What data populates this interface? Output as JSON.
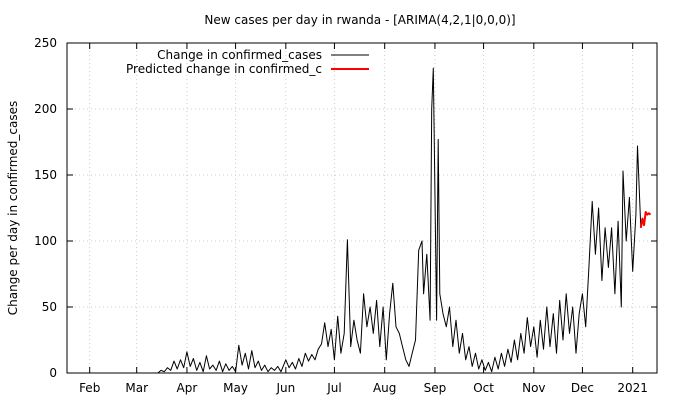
{
  "chart_data": {
    "type": "line",
    "title": "New cases per day in rwanda -  [ARIMA(4,2,1|0,0,0)]",
    "xlabel": "",
    "ylabel": "Change per day in confirmed_cases",
    "ylim": [
      0,
      250
    ],
    "xlim": [
      "2020-01-18",
      "2021-01-16"
    ],
    "yticks": [
      0,
      50,
      100,
      150,
      200,
      250
    ],
    "xticks": [
      {
        "label": "Feb",
        "date": "2020-02-01"
      },
      {
        "label": "Mar",
        "date": "2020-03-01"
      },
      {
        "label": "Apr",
        "date": "2020-04-01"
      },
      {
        "label": "May",
        "date": "2020-05-01"
      },
      {
        "label": "Jun",
        "date": "2020-06-01"
      },
      {
        "label": "Jul",
        "date": "2020-07-01"
      },
      {
        "label": "Aug",
        "date": "2020-08-01"
      },
      {
        "label": "Sep",
        "date": "2020-09-01"
      },
      {
        "label": "Oct",
        "date": "2020-10-01"
      },
      {
        "label": "Nov",
        "date": "2020-11-01"
      },
      {
        "label": "Dec",
        "date": "2020-12-01"
      },
      {
        "label": "2021",
        "date": "2021-01-01"
      }
    ],
    "grid": true,
    "legend_position": "top-left",
    "series": [
      {
        "name": "Change in confirmed_cases",
        "color": "#000000",
        "points": [
          [
            "2020-03-14",
            0
          ],
          [
            "2020-03-16",
            2
          ],
          [
            "2020-03-18",
            1
          ],
          [
            "2020-03-20",
            4
          ],
          [
            "2020-03-22",
            2
          ],
          [
            "2020-03-24",
            9
          ],
          [
            "2020-03-26",
            3
          ],
          [
            "2020-03-28",
            10
          ],
          [
            "2020-03-30",
            4
          ],
          [
            "2020-04-01",
            16
          ],
          [
            "2020-04-03",
            5
          ],
          [
            "2020-04-05",
            11
          ],
          [
            "2020-04-07",
            2
          ],
          [
            "2020-04-09",
            8
          ],
          [
            "2020-04-11",
            1
          ],
          [
            "2020-04-13",
            13
          ],
          [
            "2020-04-15",
            3
          ],
          [
            "2020-04-17",
            6
          ],
          [
            "2020-04-19",
            2
          ],
          [
            "2020-04-21",
            9
          ],
          [
            "2020-04-23",
            1
          ],
          [
            "2020-04-25",
            7
          ],
          [
            "2020-04-27",
            2
          ],
          [
            "2020-04-29",
            5
          ],
          [
            "2020-05-01",
            1
          ],
          [
            "2020-05-03",
            21
          ],
          [
            "2020-05-05",
            6
          ],
          [
            "2020-05-07",
            15
          ],
          [
            "2020-05-09",
            3
          ],
          [
            "2020-05-11",
            17
          ],
          [
            "2020-05-13",
            4
          ],
          [
            "2020-05-15",
            9
          ],
          [
            "2020-05-17",
            2
          ],
          [
            "2020-05-19",
            6
          ],
          [
            "2020-05-21",
            1
          ],
          [
            "2020-05-23",
            4
          ],
          [
            "2020-05-25",
            2
          ],
          [
            "2020-05-27",
            5
          ],
          [
            "2020-05-29",
            1
          ],
          [
            "2020-06-01",
            10
          ],
          [
            "2020-06-03",
            4
          ],
          [
            "2020-06-05",
            8
          ],
          [
            "2020-06-07",
            3
          ],
          [
            "2020-06-09",
            11
          ],
          [
            "2020-06-11",
            5
          ],
          [
            "2020-06-13",
            15
          ],
          [
            "2020-06-15",
            9
          ],
          [
            "2020-06-17",
            14
          ],
          [
            "2020-06-19",
            10
          ],
          [
            "2020-06-21",
            18
          ],
          [
            "2020-06-23",
            22
          ],
          [
            "2020-06-25",
            38
          ],
          [
            "2020-06-27",
            20
          ],
          [
            "2020-06-29",
            33
          ],
          [
            "2020-07-01",
            10
          ],
          [
            "2020-07-03",
            43
          ],
          [
            "2020-07-05",
            15
          ],
          [
            "2020-07-07",
            30
          ],
          [
            "2020-07-09",
            101
          ],
          [
            "2020-07-11",
            20
          ],
          [
            "2020-07-13",
            40
          ],
          [
            "2020-07-15",
            25
          ],
          [
            "2020-07-17",
            15
          ],
          [
            "2020-07-19",
            60
          ],
          [
            "2020-07-21",
            35
          ],
          [
            "2020-07-23",
            50
          ],
          [
            "2020-07-25",
            30
          ],
          [
            "2020-07-27",
            55
          ],
          [
            "2020-07-29",
            20
          ],
          [
            "2020-07-31",
            50
          ],
          [
            "2020-08-02",
            10
          ],
          [
            "2020-08-04",
            45
          ],
          [
            "2020-08-06",
            68
          ],
          [
            "2020-08-08",
            35
          ],
          [
            "2020-08-10",
            30
          ],
          [
            "2020-08-12",
            20
          ],
          [
            "2020-08-14",
            10
          ],
          [
            "2020-08-16",
            5
          ],
          [
            "2020-08-18",
            15
          ],
          [
            "2020-08-20",
            25
          ],
          [
            "2020-08-22",
            93
          ],
          [
            "2020-08-24",
            100
          ],
          [
            "2020-08-25",
            60
          ],
          [
            "2020-08-27",
            90
          ],
          [
            "2020-08-29",
            40
          ],
          [
            "2020-08-30",
            200
          ],
          [
            "2020-08-31",
            231
          ],
          [
            "2020-09-02",
            40
          ],
          [
            "2020-09-03",
            177
          ],
          [
            "2020-09-04",
            60
          ],
          [
            "2020-09-06",
            45
          ],
          [
            "2020-09-08",
            35
          ],
          [
            "2020-09-10",
            50
          ],
          [
            "2020-09-12",
            20
          ],
          [
            "2020-09-14",
            40
          ],
          [
            "2020-09-16",
            15
          ],
          [
            "2020-09-18",
            30
          ],
          [
            "2020-09-20",
            10
          ],
          [
            "2020-09-22",
            20
          ],
          [
            "2020-09-24",
            5
          ],
          [
            "2020-09-26",
            15
          ],
          [
            "2020-09-28",
            3
          ],
          [
            "2020-09-30",
            10
          ],
          [
            "2020-10-02",
            2
          ],
          [
            "2020-10-04",
            8
          ],
          [
            "2020-10-06",
            1
          ],
          [
            "2020-10-08",
            12
          ],
          [
            "2020-10-10",
            3
          ],
          [
            "2020-10-12",
            15
          ],
          [
            "2020-10-14",
            5
          ],
          [
            "2020-10-16",
            18
          ],
          [
            "2020-10-18",
            8
          ],
          [
            "2020-10-20",
            25
          ],
          [
            "2020-10-22",
            10
          ],
          [
            "2020-10-24",
            30
          ],
          [
            "2020-10-26",
            15
          ],
          [
            "2020-10-28",
            42
          ],
          [
            "2020-10-30",
            20
          ],
          [
            "2020-11-01",
            35
          ],
          [
            "2020-11-03",
            12
          ],
          [
            "2020-11-05",
            40
          ],
          [
            "2020-11-07",
            18
          ],
          [
            "2020-11-09",
            50
          ],
          [
            "2020-11-11",
            20
          ],
          [
            "2020-11-13",
            45
          ],
          [
            "2020-11-15",
            15
          ],
          [
            "2020-11-17",
            55
          ],
          [
            "2020-11-19",
            25
          ],
          [
            "2020-11-21",
            60
          ],
          [
            "2020-11-23",
            30
          ],
          [
            "2020-11-25",
            50
          ],
          [
            "2020-11-27",
            15
          ],
          [
            "2020-11-29",
            45
          ],
          [
            "2020-12-01",
            60
          ],
          [
            "2020-12-03",
            35
          ],
          [
            "2020-12-05",
            80
          ],
          [
            "2020-12-07",
            130
          ],
          [
            "2020-12-09",
            90
          ],
          [
            "2020-12-11",
            125
          ],
          [
            "2020-12-13",
            70
          ],
          [
            "2020-12-15",
            110
          ],
          [
            "2020-12-17",
            80
          ],
          [
            "2020-12-19",
            110
          ],
          [
            "2020-12-21",
            60
          ],
          [
            "2020-12-23",
            115
          ],
          [
            "2020-12-25",
            50
          ],
          [
            "2020-12-26",
            153
          ],
          [
            "2020-12-28",
            100
          ],
          [
            "2020-12-30",
            133
          ],
          [
            "2021-01-01",
            77
          ],
          [
            "2021-01-03",
            120
          ],
          [
            "2021-01-04",
            172
          ],
          [
            "2021-01-06",
            110
          ]
        ]
      },
      {
        "name": "Predicted change in confirmed_c",
        "color": "#ff0000",
        "points": [
          [
            "2021-01-06",
            110
          ],
          [
            "2021-01-07",
            117
          ],
          [
            "2021-01-08",
            112
          ],
          [
            "2021-01-09",
            122
          ],
          [
            "2021-01-10",
            120
          ],
          [
            "2021-01-11",
            121
          ],
          [
            "2021-01-12",
            120
          ]
        ]
      }
    ]
  }
}
